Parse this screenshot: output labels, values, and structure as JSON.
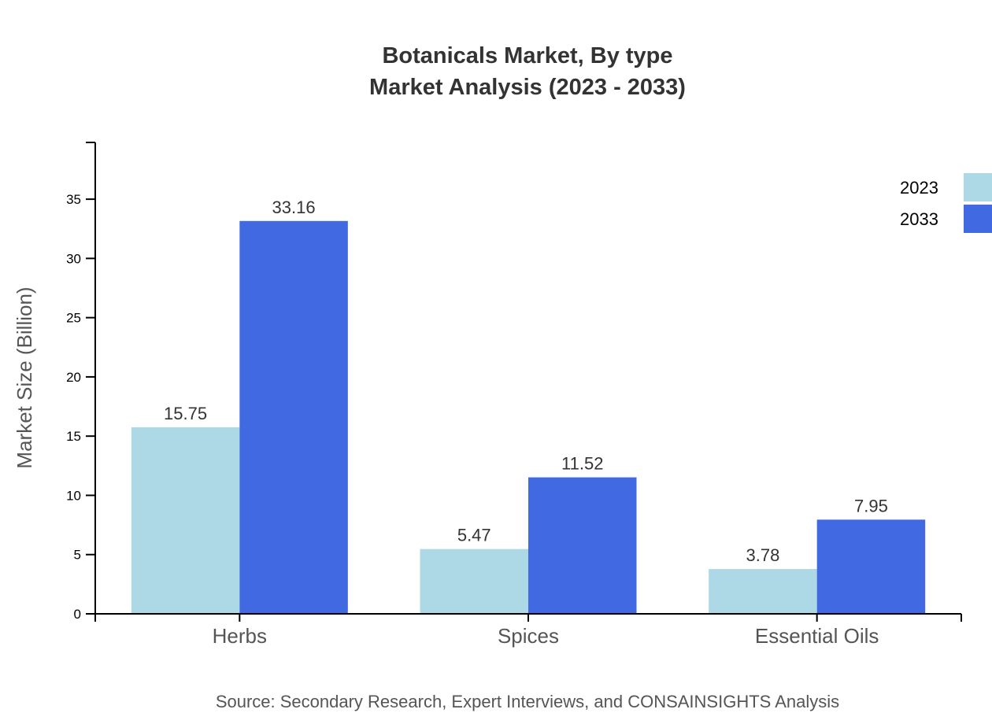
{
  "chart_data": {
    "type": "bar",
    "title": "Botanicals Market, By type",
    "subtitle": "Market Analysis (2023 - 2033)",
    "xlabel": "",
    "ylabel": "Market Size (Billion)",
    "categories": [
      "Herbs",
      "Spices",
      "Essential Oils"
    ],
    "series": [
      {
        "name": "2023",
        "values": [
          15.75,
          5.47,
          3.78
        ],
        "color": "#add8e6"
      },
      {
        "name": "2033",
        "values": [
          33.16,
          11.52,
          7.95
        ],
        "color": "#4169e1"
      }
    ],
    "ylim": [
      0,
      39.79
    ],
    "yticks": [
      0,
      5,
      10,
      15,
      20,
      25,
      30,
      35
    ],
    "grid": false,
    "legend": "top-right",
    "source": "Source: Secondary Research, Expert Interviews, and CONSAINSIGHTS Analysis"
  }
}
